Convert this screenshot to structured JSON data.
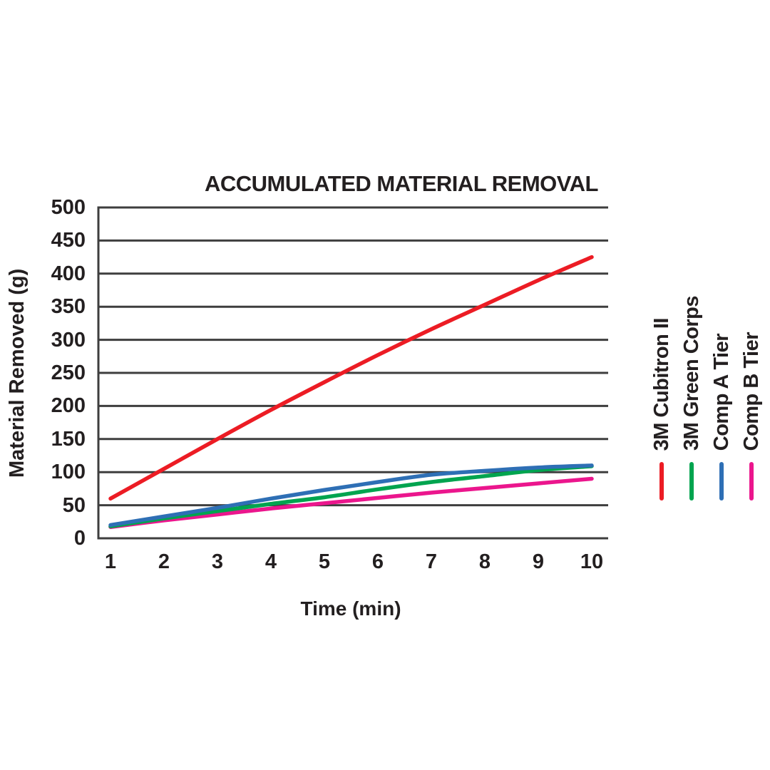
{
  "page": {
    "background": "#FFFFFF",
    "text_color": "#231F20"
  },
  "chart": {
    "grid_color": "#3E3E3E",
    "axis_color": "#3E3E3E"
  },
  "chart_data": {
    "type": "line",
    "title": "ACCUMULATED MATERIAL REMOVAL",
    "xlabel": "Time (min)",
    "ylabel": "Material Removed (g)",
    "x": [
      1,
      2,
      3,
      4,
      5,
      6,
      7,
      8,
      9,
      10
    ],
    "xtick_labels": [
      "1",
      "2",
      "3",
      "4",
      "5",
      "6",
      "7",
      "8",
      "9",
      "10"
    ],
    "ytick_labels": [
      "0",
      "50",
      "100",
      "150",
      "200",
      "250",
      "300",
      "350",
      "400",
      "450",
      "500"
    ],
    "xlim": [
      1,
      10
    ],
    "ylim": [
      0,
      500
    ],
    "ytick_step": 50,
    "grid": "horizontal-only",
    "legend_position": "right-vertical-rotated",
    "series": [
      {
        "name": "3M Cubitron II",
        "color": "#EC1C24",
        "values": [
          60,
          105,
          150,
          194,
          236,
          277,
          316,
          353,
          390,
          425
        ]
      },
      {
        "name": "3M Green Corps",
        "color": "#00A44F",
        "values": [
          18,
          30,
          41,
          52,
          62,
          74,
          85,
          94,
          103,
          109
        ]
      },
      {
        "name": "Comp A Tier",
        "color": "#2E6FB5",
        "values": [
          20,
          33,
          46,
          60,
          73,
          85,
          96,
          102,
          107,
          110
        ]
      },
      {
        "name": "Comp B Tier",
        "color": "#EB168D",
        "values": [
          17,
          27,
          36,
          45,
          53,
          61,
          69,
          76,
          83,
          90
        ]
      }
    ],
    "draw_order": [
      3,
      1,
      2,
      0
    ]
  }
}
